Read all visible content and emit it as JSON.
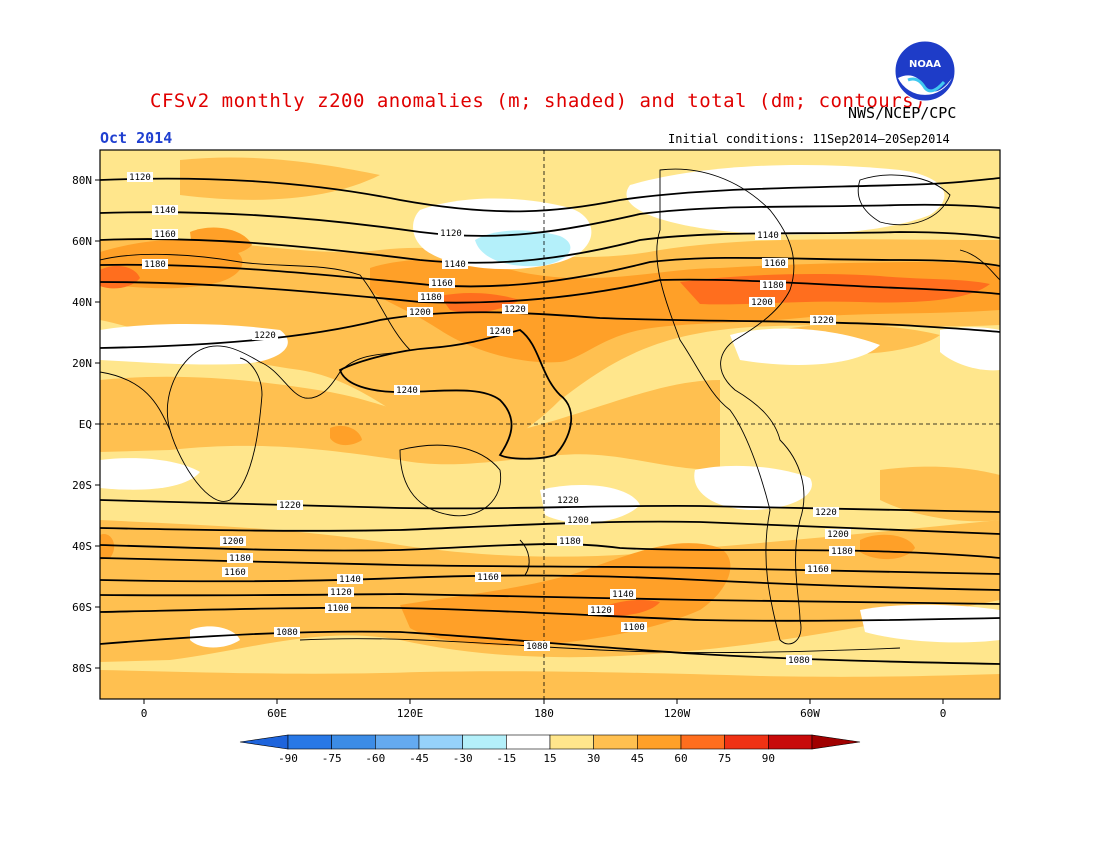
{
  "header": {
    "title": "CFSv2 monthly z200 anomalies (m; shaded) and total (dm; contours)",
    "agency": "NWS/NCEP/CPC",
    "month": "Oct 2014",
    "initial_conditions": "Initial conditions: 11Sep2014–20Sep2014",
    "logo_text": "NOAA"
  },
  "map": {
    "lat_labels": [
      "80N",
      "60N",
      "40N",
      "20N",
      "EQ",
      "20S",
      "40S",
      "60S",
      "80S"
    ],
    "lon_labels": [
      "0",
      "60E",
      "120E",
      "180",
      "120W",
      "60W",
      "0"
    ],
    "contour_labels": {
      "nh": [
        "1120",
        "1140",
        "1160",
        "1180",
        "1200",
        "1220",
        "1240"
      ],
      "sh": [
        "1220",
        "1200",
        "1180",
        "1160",
        "1140",
        "1120",
        "1100",
        "1080"
      ]
    }
  },
  "colorbar": {
    "ticks": [
      "-90",
      "-75",
      "-60",
      "-45",
      "-30",
      "-15",
      "15",
      "30",
      "45",
      "60",
      "75",
      "90"
    ],
    "colors": [
      "#1e64dc",
      "#2878e6",
      "#3c8ce6",
      "#64aaf0",
      "#96d2fa",
      "#b4f0fa",
      "#ffffff",
      "#ffe68c",
      "#ffc050",
      "#ffa028",
      "#ff6e1e",
      "#f03214",
      "#c80a0a",
      "#a00000"
    ]
  }
}
